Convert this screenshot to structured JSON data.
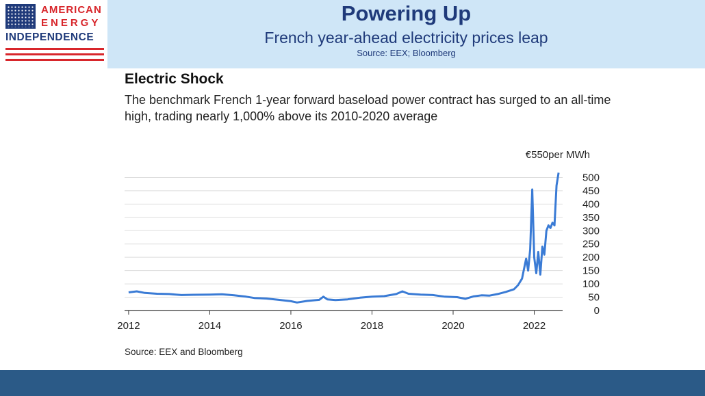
{
  "header": {
    "logo_line1": "AMERICAN",
    "logo_line2": "ENERGY",
    "logo_line3": "INDEPENDENCE",
    "title": "Powering Up",
    "subtitle": "French year-ahead electricity prices leap",
    "source": "Source: EEX; Bloomberg",
    "brand_blue": "#1f3a7a",
    "brand_red": "#d8262b",
    "band_color": "#cfe6f7"
  },
  "chart": {
    "title": "Electric Shock",
    "subtitle": "The benchmark French 1-year forward baseload power contract has surged to an all-time high, trading nearly 1,000% above its 2010-2020 average",
    "unit_label": "€550per MWh",
    "source": "Source: EEX and Bloomberg"
  },
  "footer": {
    "bar_color": "#2b5a87"
  },
  "chart_data": {
    "type": "line",
    "title": "Electric Shock",
    "xlabel": "",
    "ylabel": "€550per MWh",
    "xlim": [
      2011.9,
      2022.7
    ],
    "ylim": [
      0,
      550
    ],
    "x_ticks": [
      "2012",
      "2014",
      "2016",
      "2018",
      "2020",
      "2022"
    ],
    "y_ticks": [
      "0",
      "50",
      "100",
      "150",
      "200",
      "250",
      "300",
      "350",
      "400",
      "450",
      "500"
    ],
    "grid": true,
    "y_axis_position": "right",
    "line_color": "#3a7bd5",
    "series": [
      {
        "x": [
          2012.0,
          2012.2,
          2012.4,
          2012.7,
          2013.0,
          2013.3,
          2013.6,
          2014.0,
          2014.3,
          2014.6,
          2014.9,
          2015.1,
          2015.4,
          2015.7,
          2016.0,
          2016.15,
          2016.4,
          2016.7,
          2016.8,
          2016.9,
          2017.1,
          2017.4,
          2017.7,
          2018.0,
          2018.3,
          2018.6,
          2018.75,
          2018.9,
          2019.2,
          2019.5,
          2019.8,
          2020.1,
          2020.3,
          2020.5,
          2020.7,
          2020.9,
          2021.1,
          2021.3,
          2021.5,
          2021.6,
          2021.7,
          2021.8,
          2021.85,
          2021.9,
          2021.95,
          2022.0,
          2022.02,
          2022.05,
          2022.1,
          2022.15,
          2022.2,
          2022.25,
          2022.3,
          2022.35,
          2022.4,
          2022.45,
          2022.5,
          2022.55,
          2022.6
        ],
        "y": [
          68,
          72,
          66,
          63,
          62,
          58,
          59,
          60,
          61,
          57,
          52,
          47,
          45,
          40,
          35,
          30,
          36,
          40,
          52,
          42,
          39,
          42,
          48,
          52,
          54,
          62,
          72,
          63,
          60,
          58,
          52,
          50,
          44,
          53,
          57,
          56,
          62,
          70,
          80,
          95,
          120,
          195,
          150,
          230,
          455,
          200,
          175,
          140,
          220,
          135,
          240,
          210,
          300,
          320,
          310,
          330,
          320,
          470,
          518
        ]
      }
    ]
  }
}
